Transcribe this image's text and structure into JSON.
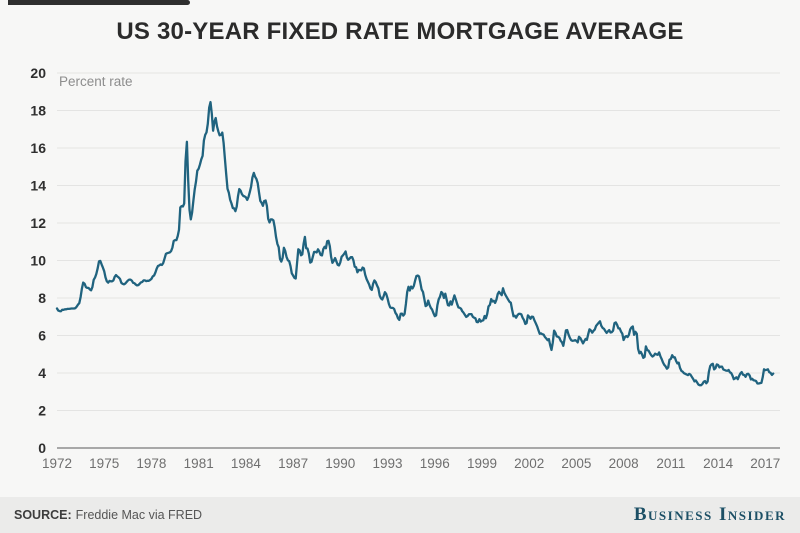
{
  "header": {
    "title": "US 30-YEAR FIXED RATE MORTGAGE AVERAGE"
  },
  "footer": {
    "source_label": "SOURCE:",
    "source_value": "Freddie Mac via FRED",
    "brand": "Business Insider"
  },
  "colors": {
    "background": "#f7f7f6",
    "footer_background": "#ebebea",
    "line": "#20637f",
    "gridline": "#e4e4e3",
    "axis": "#a8a8a8",
    "brand": "#1d5066"
  },
  "chart_data": {
    "type": "line",
    "title": "US 30-YEAR FIXED RATE MORTGAGE AVERAGE",
    "xlabel": "",
    "ylabel": "Percent rate",
    "ylim": [
      0,
      20
    ],
    "xlim": [
      1972,
      2017.6
    ],
    "grid": true,
    "legend": false,
    "line_color": "#20637f",
    "y_ticks": [
      0,
      2,
      4,
      6,
      8,
      10,
      12,
      14,
      16,
      18,
      20
    ],
    "x_ticks": [
      1972,
      1975,
      1978,
      1981,
      1984,
      1987,
      1990,
      1993,
      1996,
      1999,
      2002,
      2005,
      2008,
      2011,
      2014,
      2017
    ],
    "series": [
      {
        "name": "US 30-year fixed rate mortgage average (percent)",
        "frequency": "monthly",
        "start": "1972-01",
        "end": "2017-07",
        "values": [
          7.44,
          7.33,
          7.3,
          7.29,
          7.37,
          7.37,
          7.4,
          7.4,
          7.42,
          7.42,
          7.43,
          7.44,
          7.44,
          7.44,
          7.46,
          7.54,
          7.65,
          7.73,
          8.05,
          8.5,
          8.82,
          8.77,
          8.58,
          8.54,
          8.54,
          8.46,
          8.41,
          8.58,
          8.97,
          9.09,
          9.28,
          9.59,
          9.96,
          9.98,
          9.79,
          9.62,
          9.43,
          9.1,
          8.89,
          8.82,
          8.91,
          8.89,
          8.89,
          8.94,
          9.13,
          9.22,
          9.15,
          9.1,
          9.02,
          8.81,
          8.76,
          8.73,
          8.77,
          8.85,
          8.93,
          8.98,
          8.98,
          8.93,
          8.81,
          8.79,
          8.72,
          8.67,
          8.69,
          8.75,
          8.83,
          8.86,
          8.94,
          8.94,
          8.9,
          8.92,
          8.92,
          8.96,
          9.02,
          9.16,
          9.2,
          9.36,
          9.57,
          9.71,
          9.74,
          9.79,
          9.76,
          9.86,
          10.11,
          10.35,
          10.39,
          10.41,
          10.43,
          10.5,
          10.69,
          11.04,
          11.09,
          11.09,
          11.3,
          11.64,
          12.83,
          12.9,
          12.88,
          13.04,
          15.28,
          16.33,
          14.26,
          12.71,
          12.19,
          12.56,
          13.2,
          13.79,
          14.21,
          14.79,
          14.9,
          15.13,
          15.4,
          15.58,
          16.4,
          16.7,
          16.83,
          17.29,
          18.16,
          18.45,
          17.83,
          16.92,
          17.4,
          17.6,
          17.16,
          16.89,
          16.68,
          16.7,
          16.82,
          16.27,
          15.43,
          14.61,
          13.83,
          13.62,
          13.25,
          13.04,
          12.8,
          12.78,
          12.63,
          12.87,
          13.43,
          13.81,
          13.73,
          13.54,
          13.44,
          13.42,
          13.37,
          13.23,
          13.39,
          13.65,
          13.94,
          14.42,
          14.67,
          14.47,
          14.35,
          14.13,
          13.64,
          13.18,
          13.08,
          12.92,
          13.17,
          13.2,
          12.91,
          12.22,
          12.03,
          12.19,
          12.19,
          12.14,
          11.78,
          11.26,
          10.88,
          10.71,
          10.08,
          9.94,
          10.14,
          10.68,
          10.51,
          10.2,
          10.01,
          9.97,
          9.7,
          9.31,
          9.2,
          9.08,
          9.04,
          9.83,
          10.6,
          10.54,
          10.28,
          10.33,
          10.89,
          11.26,
          10.65,
          10.64,
          10.38,
          9.89,
          9.93,
          10.2,
          10.46,
          10.46,
          10.43,
          10.6,
          10.48,
          10.3,
          10.27,
          10.61,
          10.73,
          10.65,
          11.03,
          11.05,
          10.77,
          10.2,
          9.88,
          9.99,
          10.13,
          9.95,
          9.77,
          9.74,
          9.9,
          10.2,
          10.27,
          10.37,
          10.48,
          10.16,
          10.04,
          10.1,
          10.18,
          10.18,
          10.01,
          9.67,
          9.64,
          9.37,
          9.5,
          9.49,
          9.47,
          9.62,
          9.58,
          9.24,
          9.01,
          8.86,
          8.71,
          8.5,
          8.43,
          8.76,
          8.94,
          8.85,
          8.67,
          8.51,
          8.13,
          7.98,
          7.92,
          8.09,
          8.31,
          8.22,
          7.99,
          7.68,
          7.5,
          7.47,
          7.47,
          7.42,
          7.21,
          7.11,
          6.92,
          6.83,
          7.16,
          7.17,
          7.06,
          7.15,
          7.68,
          8.32,
          8.6,
          8.4,
          8.61,
          8.51,
          8.64,
          8.93,
          9.17,
          9.2,
          9.15,
          8.83,
          8.46,
          8.32,
          7.96,
          7.57,
          7.61,
          7.86,
          7.64,
          7.48,
          7.38,
          7.2,
          7.03,
          7.08,
          7.62,
          7.93,
          8.07,
          8.32,
          8.25,
          8.0,
          8.23,
          7.92,
          7.62,
          7.6,
          7.82,
          7.65,
          7.9,
          8.14,
          7.94,
          7.69,
          7.5,
          7.48,
          7.43,
          7.29,
          7.21,
          7.1,
          6.99,
          7.04,
          7.13,
          7.14,
          7.14,
          7.0,
          6.95,
          6.92,
          6.72,
          6.71,
          6.87,
          6.74,
          6.79,
          6.81,
          7.04,
          6.92,
          7.15,
          7.55,
          7.63,
          7.94,
          7.82,
          7.85,
          7.74,
          7.91,
          8.21,
          8.33,
          8.24,
          8.15,
          8.52,
          8.29,
          8.15,
          8.03,
          7.91,
          7.8,
          7.75,
          7.38,
          7.03,
          7.05,
          6.95,
          7.08,
          7.15,
          7.16,
          7.13,
          6.95,
          6.82,
          6.62,
          6.66,
          7.07,
          7.0,
          6.89,
          7.01,
          6.99,
          6.81,
          6.65,
          6.49,
          6.29,
          6.09,
          6.11,
          6.07,
          6.05,
          5.92,
          5.84,
          5.75,
          5.81,
          5.48,
          5.23,
          5.63,
          6.26,
          6.15,
          5.95,
          5.93,
          5.88,
          5.71,
          5.64,
          5.45,
          5.83,
          6.27,
          6.29,
          6.06,
          5.87,
          5.75,
          5.72,
          5.73,
          5.75,
          5.71,
          5.63,
          5.93,
          5.86,
          5.72,
          5.58,
          5.7,
          5.82,
          5.77,
          6.07,
          6.33,
          6.27,
          6.15,
          6.25,
          6.32,
          6.51,
          6.6,
          6.68,
          6.76,
          6.52,
          6.4,
          6.36,
          6.24,
          6.14,
          6.22,
          6.29,
          6.16,
          6.18,
          6.26,
          6.66,
          6.7,
          6.57,
          6.38,
          6.38,
          6.21,
          6.1,
          5.76,
          5.92,
          5.97,
          5.92,
          6.04,
          6.32,
          6.43,
          6.48,
          6.04,
          6.2,
          6.09,
          5.29,
          5.05,
          5.13,
          5.0,
          4.81,
          4.86,
          5.42,
          5.22,
          5.19,
          5.06,
          4.95,
          4.88,
          4.93,
          5.03,
          4.99,
          4.97,
          5.1,
          4.89,
          4.74,
          4.56,
          4.43,
          4.35,
          4.23,
          4.3,
          4.71,
          4.76,
          4.95,
          4.84,
          4.84,
          4.64,
          4.51,
          4.55,
          4.27,
          4.11,
          4.07,
          3.99,
          3.96,
          3.92,
          3.89,
          3.95,
          3.91,
          3.8,
          3.68,
          3.55,
          3.6,
          3.5,
          3.38,
          3.35,
          3.35,
          3.41,
          3.53,
          3.57,
          3.45,
          3.54,
          4.07,
          4.37,
          4.46,
          4.49,
          4.19,
          4.26,
          4.46,
          4.43,
          4.3,
          4.34,
          4.34,
          4.19,
          4.16,
          4.13,
          4.12,
          4.16,
          4.04,
          4.0,
          3.86,
          3.67,
          3.71,
          3.77,
          3.67,
          3.84,
          3.98,
          4.05,
          3.91,
          3.89,
          3.8,
          3.94,
          3.96,
          3.87,
          3.66,
          3.69,
          3.61,
          3.6,
          3.57,
          3.44,
          3.44,
          3.46,
          3.47,
          3.77,
          4.2,
          4.15,
          4.17,
          4.2,
          4.05,
          4.01,
          3.9,
          3.97
        ]
      }
    ]
  }
}
